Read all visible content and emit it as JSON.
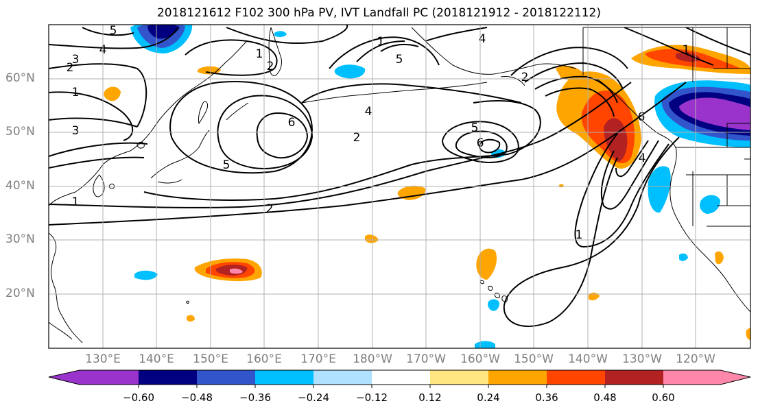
{
  "title": "2018121612 F102 300 hPa PV, IVT Landfall PC (2018121912 - 2018122112)",
  "lat_labels": [
    "60°N",
    "50°N",
    "40°N",
    "30°N",
    "20°N"
  ],
  "lon_labels": [
    "130°E",
    "140°E",
    "150°E",
    "160°E",
    "170°E",
    "180°W",
    "170°W",
    "160°W",
    "150°W",
    "140°W",
    "130°W",
    "120°W"
  ],
  "colorbar": {
    "ticks": [
      "−0.60",
      "−0.48",
      "−0.36",
      "−0.24",
      "−0.12",
      "0.12",
      "0.24",
      "0.36",
      "0.48",
      "0.60"
    ],
    "colors": [
      "#9933cc",
      "#000080",
      "#3355cc",
      "#00bfff",
      "#b0e2ff",
      "#ffffff",
      "#ffe680",
      "#ffa500",
      "#ff4500",
      "#b22222",
      "#ff88aa",
      "#ff88aa"
    ]
  },
  "contour_labels": [
    "5",
    "4",
    "3",
    "2",
    "1",
    "3",
    "1",
    "1",
    "2",
    "6",
    "5",
    "2",
    "4",
    "2",
    "5",
    "6",
    "1",
    "4",
    "2",
    "5",
    "4",
    "1",
    "6",
    "1"
  ],
  "colors": {
    "contour": "#000000",
    "land_outline": "#000000",
    "grid": "#b0b0b0",
    "axis_label": "#808080"
  }
}
